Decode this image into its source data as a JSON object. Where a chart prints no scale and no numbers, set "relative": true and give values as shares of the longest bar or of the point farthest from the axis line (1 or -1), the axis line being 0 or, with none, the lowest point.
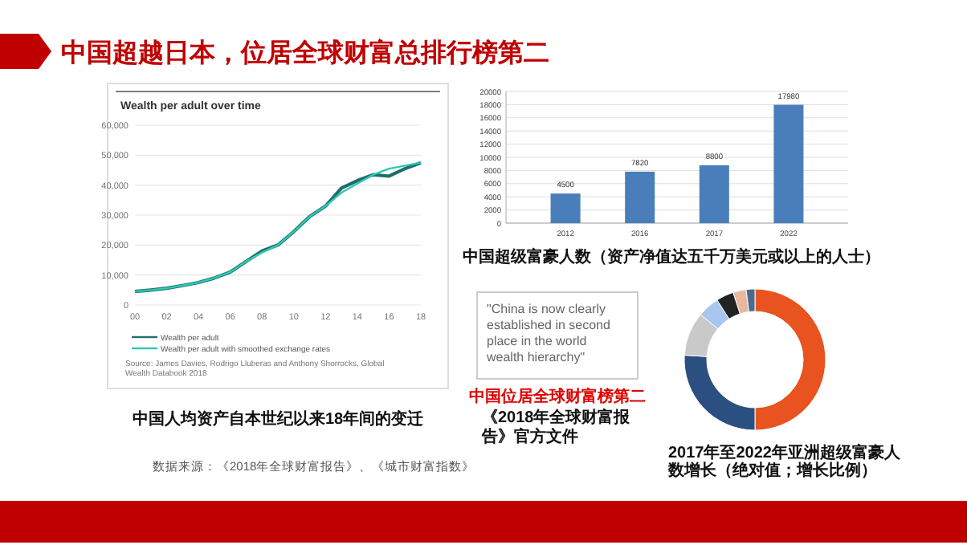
{
  "chart_data": [
    {
      "type": "other",
      "title": "中国超越日本，位居全球财富总排行榜第二",
      "annotations": [
        "数据来源：《2018年全球财富报告》、《城市财富指数》"
      ]
    },
    {
      "type": "line",
      "title": "Wealth per adult over time",
      "x": [
        2000,
        2001,
        2002,
        2003,
        2004,
        2005,
        2006,
        2007,
        2008,
        2009,
        2010,
        2011,
        2012,
        2013,
        2014,
        2015,
        2016,
        2017,
        2018
      ],
      "series": [
        {
          "name": "Wealth per adult",
          "color": "#1f6e6a",
          "values": [
            4500,
            5000,
            5600,
            6500,
            7500,
            9000,
            11000,
            14500,
            18000,
            20000,
            24500,
            29500,
            33000,
            39000,
            41500,
            43500,
            43000,
            45500,
            47500
          ]
        },
        {
          "name": "Wealth per adult with smoothed exchange rates",
          "color": "#2ec8b4",
          "values": [
            4500,
            5000,
            5600,
            6500,
            7500,
            9000,
            11000,
            14500,
            17500,
            20000,
            24500,
            29500,
            33000,
            37500,
            40500,
            43500,
            45500,
            46500,
            47500
          ]
        }
      ],
      "xlim": [
        2000,
        2018
      ],
      "xticks": [
        {
          "value": 2000,
          "label": "00"
        },
        {
          "value": 2002,
          "label": "02"
        },
        {
          "value": 2004,
          "label": "04"
        },
        {
          "value": 2006,
          "label": "06"
        },
        {
          "value": 2008,
          "label": "08"
        },
        {
          "value": 2010,
          "label": "10"
        },
        {
          "value": 2012,
          "label": "12"
        },
        {
          "value": 2014,
          "label": "14"
        },
        {
          "value": 2016,
          "label": "16"
        },
        {
          "value": 2018,
          "label": "18"
        }
      ],
      "ylim": [
        0,
        60000
      ],
      "yticks": [
        {
          "value": 0,
          "label": "0"
        },
        {
          "value": 10000,
          "label": "10,000"
        },
        {
          "value": 20000,
          "label": "20,000"
        },
        {
          "value": 30000,
          "label": "30,000"
        },
        {
          "value": 40000,
          "label": "40,000"
        },
        {
          "value": 50000,
          "label": "50,000"
        },
        {
          "value": 60000,
          "label": "60,000"
        }
      ],
      "grid": "y",
      "legend": "bottom",
      "annotations": [
        "Source: James Davies, Rodrigo Lluberas and Anthony Shorrocks, Global Wealth Databook 2018",
        "中国人均资产自本世纪以来18年间的变迁"
      ]
    },
    {
      "type": "bar",
      "categories": [
        "2012",
        "2016",
        "2017",
        "2022"
      ],
      "values": [
        4500,
        7820,
        8800,
        17980
      ],
      "color": "#4a7ebb",
      "data_labels": true,
      "ylim": [
        0,
        20000
      ],
      "yticks": [
        0,
        2000,
        4000,
        6000,
        8000,
        10000,
        12000,
        14000,
        16000,
        18000,
        20000
      ],
      "grid": "y",
      "annotations": [
        "中国超级富豪人数（资产净值达五千万美元或以上的人士）"
      ]
    },
    {
      "type": "other",
      "title": "中国位居全球财富榜第二",
      "annotations": [
        "\"China is now clearly established in second place in the world wealth hierarchy\"",
        "《2018年全球财富报告》官方文件"
      ]
    },
    {
      "type": "donut",
      "relative": true,
      "categories": [
        null,
        null,
        null,
        null,
        null,
        null,
        null
      ],
      "values": [
        50,
        26,
        10,
        5,
        4,
        3,
        2
      ],
      "colors": [
        "#e8531f",
        "#2b4f80",
        "#c9c9c9",
        "#a8c7ee",
        "#222222",
        "#e9b7a2",
        "#4b6b8c"
      ],
      "title": "2017年至2022年亚洲超级富豪人数增长（绝对值；增长比例）"
    }
  ]
}
